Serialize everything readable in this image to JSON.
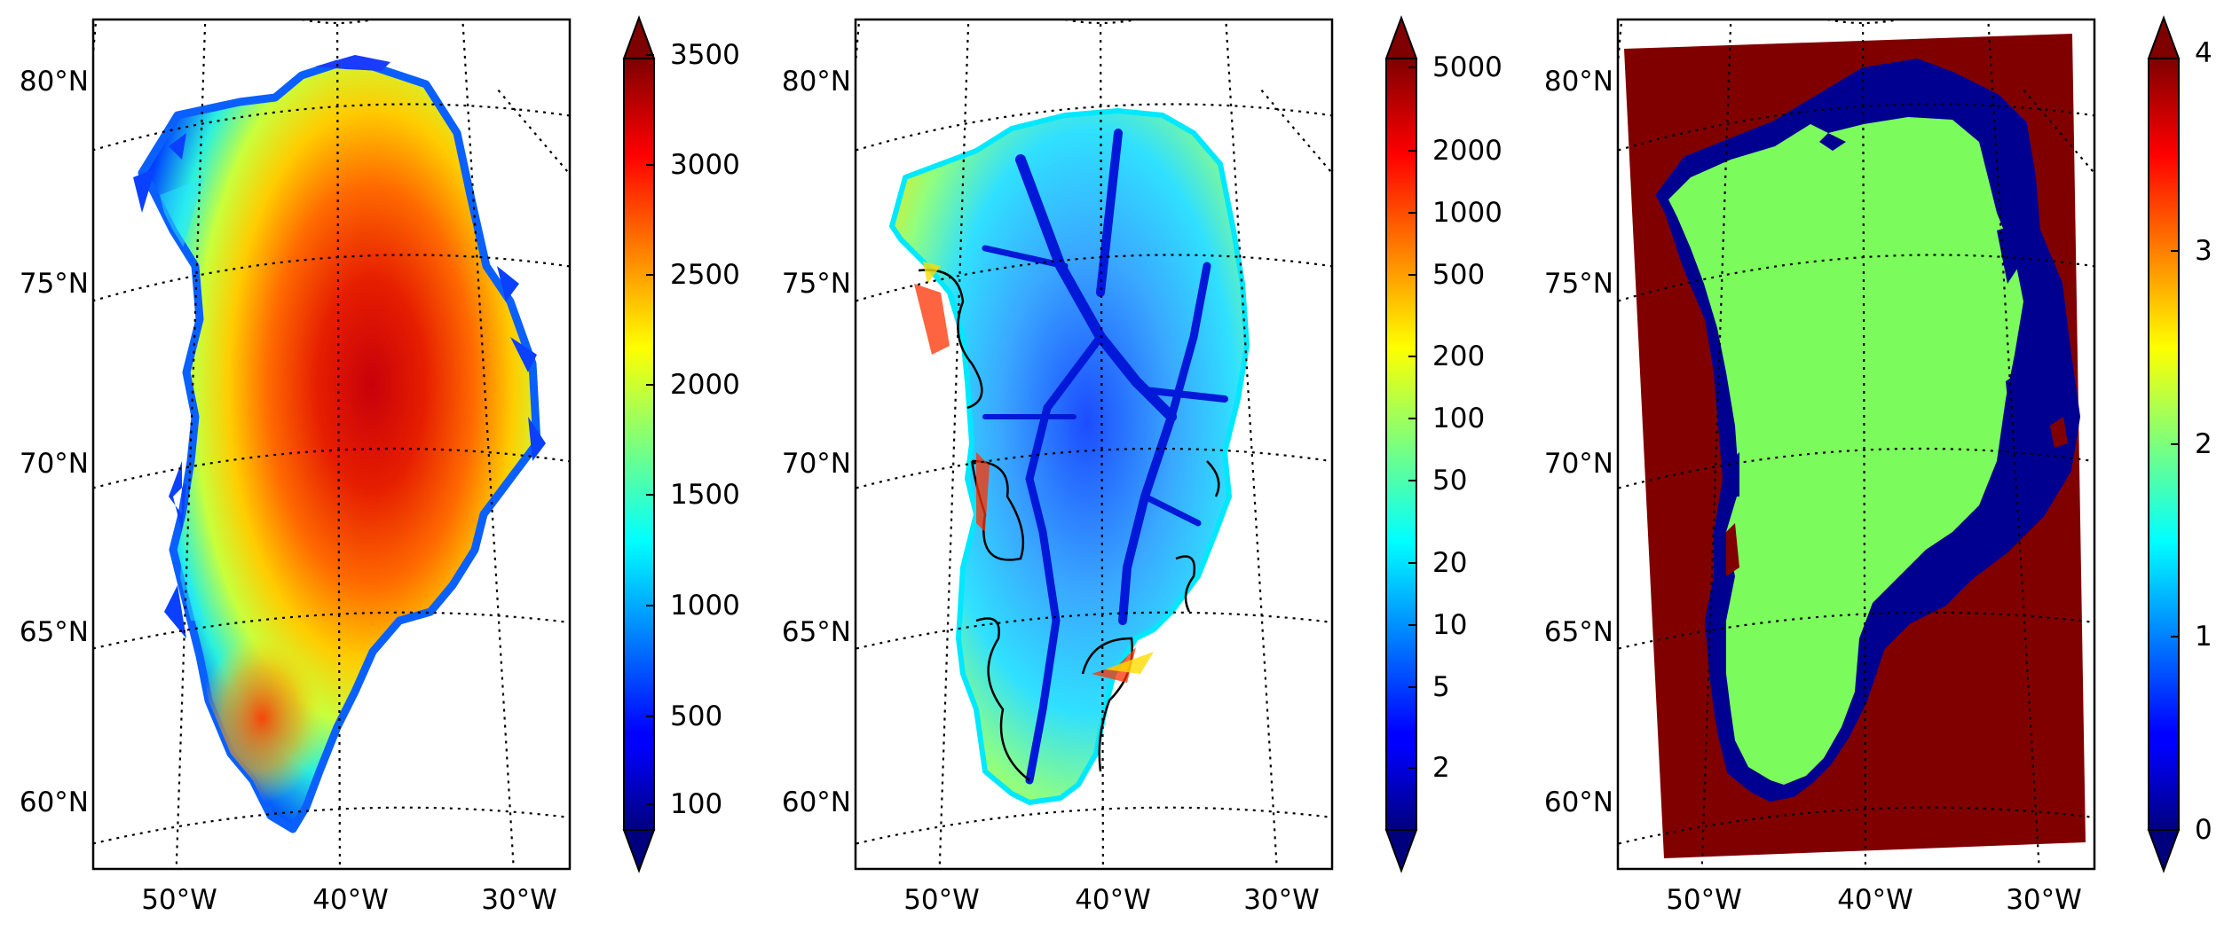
{
  "figure": {
    "panels": [
      {
        "id": "thickness",
        "lat_labels": [
          "80°N",
          "75°N",
          "70°N",
          "65°N",
          "60°N"
        ],
        "lon_labels": [
          "50°W",
          "40°W",
          "30°W"
        ],
        "colorbar": {
          "scale": "linear",
          "extend": "both",
          "ticks": [
            "3500",
            "3000",
            "2500",
            "2000",
            "1500",
            "1000",
            "500",
            "100"
          ]
        }
      },
      {
        "id": "velocity",
        "lat_labels": [
          "80°N",
          "75°N",
          "70°N",
          "65°N",
          "60°N"
        ],
        "lon_labels": [
          "50°W",
          "40°W",
          "30°W"
        ],
        "colorbar": {
          "scale": "log",
          "extend": "both",
          "ticks": [
            "5000",
            "2000",
            "1000",
            "500",
            "200",
            "100",
            "50",
            "20",
            "10",
            "5",
            "2"
          ]
        }
      },
      {
        "id": "mask",
        "lat_labels": [
          "80°N",
          "75°N",
          "70°N",
          "65°N",
          "60°N"
        ],
        "lon_labels": [
          "50°W",
          "40°W",
          "30°W"
        ],
        "colorbar": {
          "scale": "discrete",
          "extend": "both",
          "ticks": [
            "4",
            "3",
            "2",
            "1",
            "0"
          ]
        }
      }
    ],
    "colors": {
      "colormap": "jet",
      "ice_green": "#7cfc5c",
      "ocean_darkred": "#800000",
      "floating_darkblue": "#000090",
      "jet_darkred": "#7f0000",
      "jet_darkblue": "#00007f"
    }
  }
}
